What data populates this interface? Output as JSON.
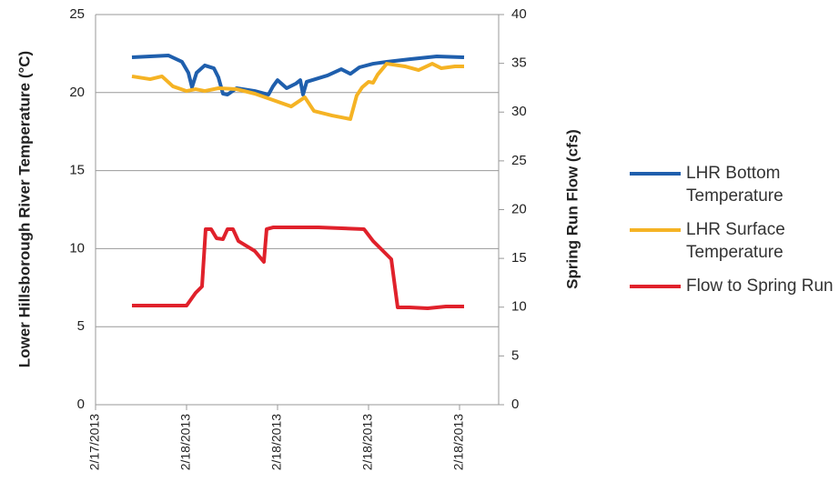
{
  "chart_data": {
    "type": "line",
    "y_label": "Lower Hillsborough River Temperature (°C)",
    "y2_label": "Spring Run Flow (cfs)",
    "xlim": [
      0,
      4.43
    ],
    "xticks": [
      {
        "value": 0,
        "label": "2/17/2013"
      },
      {
        "value": 1,
        "label": "2/18/2013"
      },
      {
        "value": 2,
        "label": "2/18/2013"
      },
      {
        "value": 3,
        "label": "2/18/2013"
      },
      {
        "value": 4,
        "label": "2/18/2013"
      }
    ],
    "ylim": [
      0,
      25
    ],
    "yticks": [
      0,
      5,
      10,
      15,
      20,
      25
    ],
    "y2lim": [
      0,
      40
    ],
    "y2ticks": [
      0,
      5,
      10,
      15,
      20,
      25,
      30,
      35,
      40
    ],
    "grid": true,
    "legend": "right",
    "series": [
      {
        "name": "LHR Bottom Temperature",
        "color": "#1f5fad",
        "x": [
          0.4,
          0.8,
          0.95,
          1.02,
          1.06,
          1.11,
          1.2,
          1.3,
          1.35,
          1.4,
          1.45,
          1.55,
          1.75,
          1.9,
          1.95,
          2.0,
          2.1,
          2.2,
          2.25,
          2.28,
          2.32,
          2.55,
          2.7,
          2.8,
          2.9,
          3.05,
          3.2,
          3.45,
          3.75,
          4.05
        ],
        "values": [
          22.26,
          22.38,
          21.97,
          21.27,
          20.34,
          21.27,
          21.74,
          21.56,
          20.98,
          19.93,
          19.87,
          20.28,
          20.1,
          19.87,
          20.4,
          20.8,
          20.28,
          20.57,
          20.8,
          19.87,
          20.69,
          21.1,
          21.5,
          21.2,
          21.62,
          21.85,
          21.97,
          22.14,
          22.32,
          22.26
        ]
      },
      {
        "name": "LHR Surface Temperature",
        "color": "#f5b324",
        "x": [
          0.4,
          0.6,
          0.73,
          0.85,
          1.0,
          1.1,
          1.2,
          1.35,
          1.55,
          1.75,
          1.95,
          2.15,
          2.3,
          2.4,
          2.6,
          2.8,
          2.87,
          2.93,
          3.0,
          3.05,
          3.1,
          3.2,
          3.4,
          3.55,
          3.7,
          3.8,
          3.95,
          4.05
        ],
        "values": [
          21.04,
          20.86,
          21.04,
          20.4,
          20.1,
          20.22,
          20.1,
          20.28,
          20.22,
          19.93,
          19.52,
          19.11,
          19.7,
          18.82,
          18.53,
          18.3,
          19.81,
          20.34,
          20.69,
          20.63,
          21.15,
          21.85,
          21.68,
          21.44,
          21.85,
          21.56,
          21.68,
          21.68
        ]
      },
      {
        "name": "Flow to Spring Run",
        "color": "#e0212b",
        "axis": "y2",
        "x": [
          0.4,
          1.0,
          1.1,
          1.17,
          1.21,
          1.27,
          1.33,
          1.4,
          1.45,
          1.51,
          1.57,
          1.65,
          1.75,
          1.85,
          1.88,
          1.95,
          2.45,
          2.95,
          3.05,
          3.15,
          3.25,
          3.32,
          3.45,
          3.65,
          3.85,
          4.05
        ],
        "values": [
          10.16,
          10.16,
          11.47,
          12.12,
          18.0,
          18.0,
          17.06,
          16.97,
          18.0,
          18.0,
          16.78,
          16.32,
          15.76,
          14.64,
          18.0,
          18.18,
          18.18,
          18.0,
          16.78,
          15.85,
          14.92,
          9.98,
          9.98,
          9.88,
          10.07,
          10.07
        ]
      }
    ]
  }
}
